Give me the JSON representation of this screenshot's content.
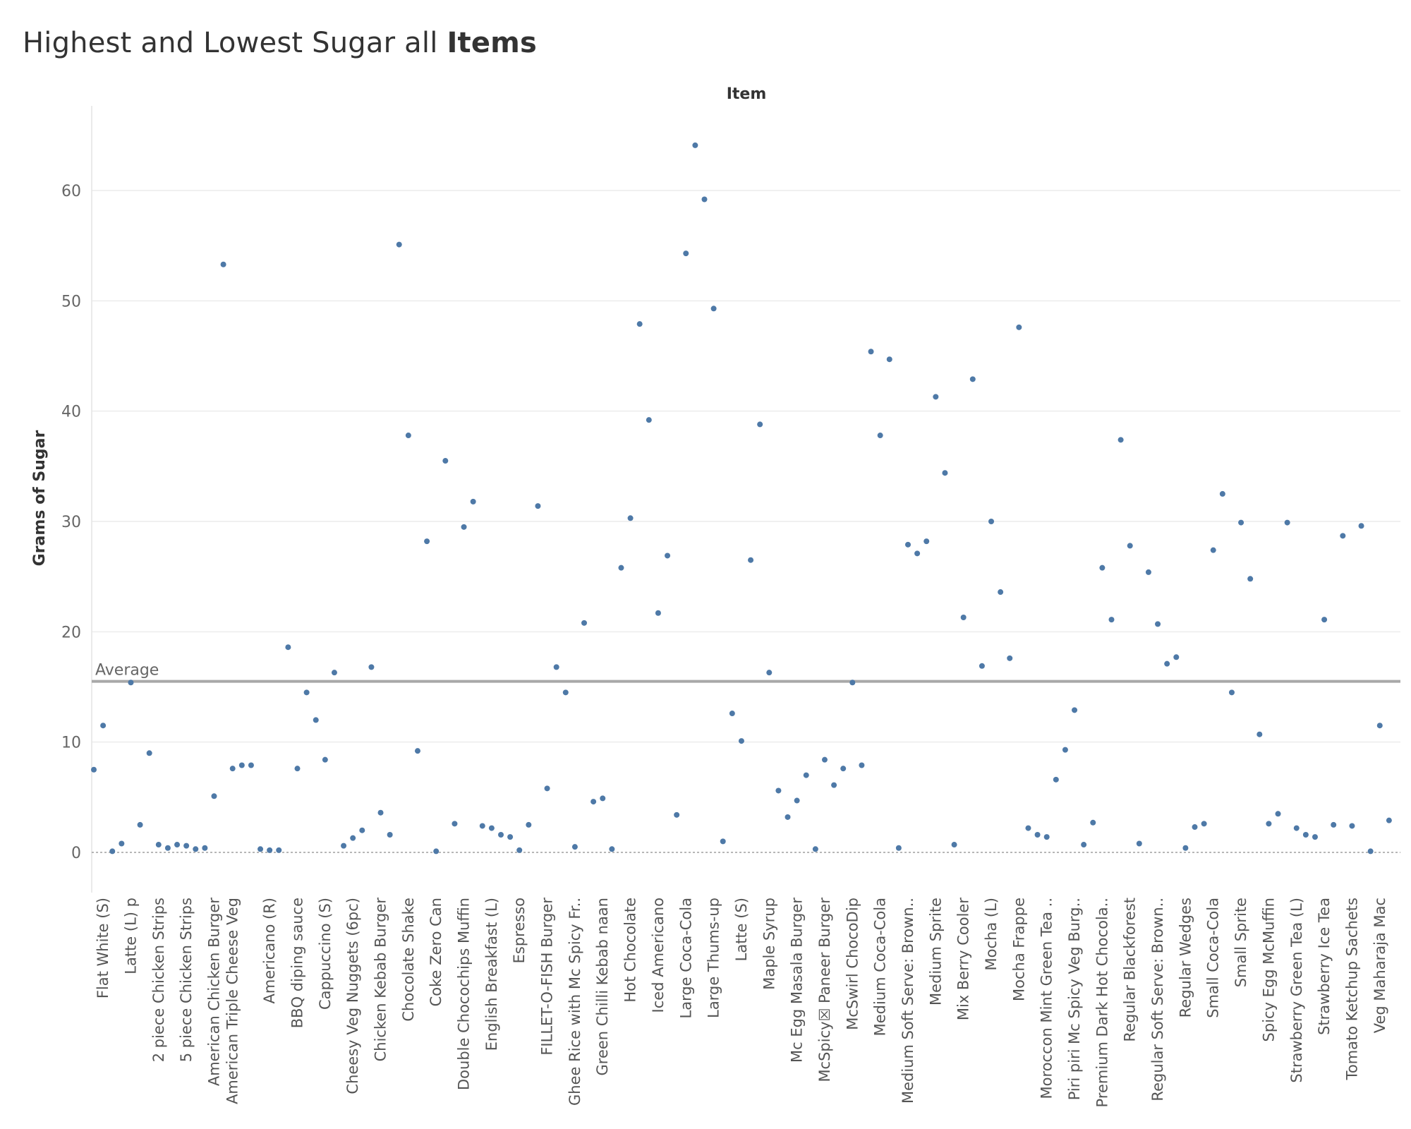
{
  "title_main": "Highest and Lowest Sugar all ",
  "title_bold": "Items",
  "chart_data": {
    "type": "scatter",
    "title": "Highest and Lowest Sugar all Items",
    "xlabel": "Item",
    "ylabel": "Grams of Sugar",
    "ylim": [
      -3.5,
      68.5
    ],
    "yticks": [
      0,
      10,
      20,
      30,
      40,
      50,
      60
    ],
    "grid": true,
    "average": {
      "label": "Average",
      "value": 15.5
    },
    "point_color": "#4e79a7",
    "x_tick_labels": [
      "Flat White (S)",
      "Latte (L) p",
      "2 piece Chicken Strips",
      "5 piece Chicken Strips",
      "American Chicken Burger",
      "American Triple Cheese Veg",
      "Americano (R)",
      "BBQ diping sauce",
      "Cappuccino (S)",
      "Cheesy Veg Nuggets (6pc)",
      "Chicken Kebab Burger",
      "Chocolate Shake",
      "Coke Zero Can",
      "Double Chocochips Muffin",
      "English Breakfast (L)",
      "Espresso",
      "FILLET-O-FISH Burger",
      "Ghee Rice with Mc Spicy Fr..",
      "Green Chilli Kebab naan",
      "Hot Chocolate",
      "Iced Americano",
      "Large Coca-Cola",
      "Large Thums-up",
      "Latte (S)",
      "Maple Syrup",
      "Mc Egg Masala Burger",
      "McSpicy☒ Paneer Burger",
      "McSwirl ChocoDip",
      "Medium Coca-Cola",
      "Medium Soft Serve: Brown..",
      "Medium Sprite",
      "Mix Berry Cooler",
      "Mocha (L)",
      "Mocha Frappe",
      "Moroccon Mint Green Tea ..",
      "Piri piri Mc Spicy Veg Burg..",
      "Premium Dark Hot Chocola..",
      "Regular Blackforest",
      "Regular Soft Serve: Brown..",
      "Regular Wedges",
      "Small Coca-Cola",
      "Small Sprite",
      "Spicy Egg McMuffin",
      "Strawberry Green Tea (L)",
      "Strawberry Ice Tea",
      "Tomato Ketchup Sachets",
      "Veg Maharaja Mac"
    ],
    "x_tick_positions": [
      1,
      4,
      7,
      10,
      13,
      15,
      19,
      22,
      25,
      28,
      31,
      34,
      37,
      40,
      43,
      46,
      49,
      52,
      55,
      58,
      61,
      64,
      67,
      70,
      73,
      76,
      79,
      82,
      85,
      88,
      91,
      94,
      97,
      100,
      103,
      106,
      109,
      112,
      115,
      118,
      121,
      124,
      127,
      130,
      133,
      136,
      139
    ],
    "x_range": [
      0,
      141
    ],
    "points": [
      {
        "x": 0,
        "y": 7.5
      },
      {
        "x": 1,
        "y": 11.5
      },
      {
        "x": 2,
        "y": 0.1
      },
      {
        "x": 3,
        "y": 0.8
      },
      {
        "x": 4,
        "y": 15.4
      },
      {
        "x": 5,
        "y": 2.5
      },
      {
        "x": 6,
        "y": 9.0
      },
      {
        "x": 7,
        "y": 0.7
      },
      {
        "x": 8,
        "y": 0.4
      },
      {
        "x": 9,
        "y": 0.7
      },
      {
        "x": 10,
        "y": 0.6
      },
      {
        "x": 11,
        "y": 0.3
      },
      {
        "x": 12,
        "y": 0.4
      },
      {
        "x": 13,
        "y": 5.1
      },
      {
        "x": 14,
        "y": 53.3
      },
      {
        "x": 15,
        "y": 7.6
      },
      {
        "x": 16,
        "y": 7.9
      },
      {
        "x": 17,
        "y": 7.9
      },
      {
        "x": 18,
        "y": 0.3
      },
      {
        "x": 19,
        "y": 0.2
      },
      {
        "x": 20,
        "y": 0.2
      },
      {
        "x": 21,
        "y": 18.6
      },
      {
        "x": 22,
        "y": 7.6
      },
      {
        "x": 23,
        "y": 14.5
      },
      {
        "x": 24,
        "y": 12.0
      },
      {
        "x": 25,
        "y": 8.4
      },
      {
        "x": 26,
        "y": 16.3
      },
      {
        "x": 27,
        "y": 0.6
      },
      {
        "x": 28,
        "y": 1.3
      },
      {
        "x": 29,
        "y": 2.0
      },
      {
        "x": 30,
        "y": 16.8
      },
      {
        "x": 31,
        "y": 3.6
      },
      {
        "x": 32,
        "y": 1.6
      },
      {
        "x": 33,
        "y": 55.1
      },
      {
        "x": 34,
        "y": 37.8
      },
      {
        "x": 35,
        "y": 9.2
      },
      {
        "x": 36,
        "y": 28.2
      },
      {
        "x": 37,
        "y": 0.1
      },
      {
        "x": 38,
        "y": 35.5
      },
      {
        "x": 39,
        "y": 2.6
      },
      {
        "x": 40,
        "y": 29.5
      },
      {
        "x": 41,
        "y": 31.8
      },
      {
        "x": 42,
        "y": 2.4
      },
      {
        "x": 43,
        "y": 2.2
      },
      {
        "x": 44,
        "y": 1.6
      },
      {
        "x": 45,
        "y": 1.4
      },
      {
        "x": 46,
        "y": 0.2
      },
      {
        "x": 47,
        "y": 2.5
      },
      {
        "x": 48,
        "y": 31.4
      },
      {
        "x": 49,
        "y": 5.8
      },
      {
        "x": 50,
        "y": 16.8
      },
      {
        "x": 51,
        "y": 14.5
      },
      {
        "x": 52,
        "y": 0.5
      },
      {
        "x": 53,
        "y": 20.8
      },
      {
        "x": 54,
        "y": 4.6
      },
      {
        "x": 55,
        "y": 4.9
      },
      {
        "x": 56,
        "y": 0.3
      },
      {
        "x": 57,
        "y": 25.8
      },
      {
        "x": 58,
        "y": 30.3
      },
      {
        "x": 59,
        "y": 47.9
      },
      {
        "x": 60,
        "y": 39.2
      },
      {
        "x": 61,
        "y": 21.7
      },
      {
        "x": 62,
        "y": 26.9
      },
      {
        "x": 63,
        "y": 3.4
      },
      {
        "x": 64,
        "y": 54.3
      },
      {
        "x": 65,
        "y": 64.1
      },
      {
        "x": 66,
        "y": 59.2
      },
      {
        "x": 67,
        "y": 49.3
      },
      {
        "x": 68,
        "y": 1.0
      },
      {
        "x": 69,
        "y": 12.6
      },
      {
        "x": 70,
        "y": 10.1
      },
      {
        "x": 71,
        "y": 26.5
      },
      {
        "x": 72,
        "y": 38.8
      },
      {
        "x": 73,
        "y": 16.3
      },
      {
        "x": 74,
        "y": 5.6
      },
      {
        "x": 75,
        "y": 3.2
      },
      {
        "x": 76,
        "y": 4.7
      },
      {
        "x": 77,
        "y": 7.0
      },
      {
        "x": 78,
        "y": 0.3
      },
      {
        "x": 79,
        "y": 8.4
      },
      {
        "x": 80,
        "y": 6.1
      },
      {
        "x": 81,
        "y": 7.6
      },
      {
        "x": 82,
        "y": 15.4
      },
      {
        "x": 83,
        "y": 7.9
      },
      {
        "x": 84,
        "y": 45.4
      },
      {
        "x": 85,
        "y": 37.8
      },
      {
        "x": 86,
        "y": 44.7
      },
      {
        "x": 87,
        "y": 0.4
      },
      {
        "x": 88,
        "y": 27.9
      },
      {
        "x": 89,
        "y": 27.1
      },
      {
        "x": 90,
        "y": 28.2
      },
      {
        "x": 91,
        "y": 41.3
      },
      {
        "x": 92,
        "y": 34.4
      },
      {
        "x": 93,
        "y": 0.7
      },
      {
        "x": 94,
        "y": 21.3
      },
      {
        "x": 95,
        "y": 42.9
      },
      {
        "x": 96,
        "y": 16.9
      },
      {
        "x": 97,
        "y": 30.0
      },
      {
        "x": 98,
        "y": 23.6
      },
      {
        "x": 99,
        "y": 17.6
      },
      {
        "x": 100,
        "y": 47.6
      },
      {
        "x": 101,
        "y": 2.2
      },
      {
        "x": 102,
        "y": 1.6
      },
      {
        "x": 103,
        "y": 1.4
      },
      {
        "x": 104,
        "y": 6.6
      },
      {
        "x": 105,
        "y": 9.3
      },
      {
        "x": 106,
        "y": 12.9
      },
      {
        "x": 107,
        "y": 0.7
      },
      {
        "x": 108,
        "y": 2.7
      },
      {
        "x": 109,
        "y": 25.8
      },
      {
        "x": 110,
        "y": 21.1
      },
      {
        "x": 111,
        "y": 37.4
      },
      {
        "x": 112,
        "y": 27.8
      },
      {
        "x": 113,
        "y": 0.8
      },
      {
        "x": 114,
        "y": 25.4
      },
      {
        "x": 115,
        "y": 20.7
      },
      {
        "x": 116,
        "y": 17.1
      },
      {
        "x": 117,
        "y": 17.7
      },
      {
        "x": 118,
        "y": 0.4
      },
      {
        "x": 119,
        "y": 2.3
      },
      {
        "x": 120,
        "y": 2.6
      },
      {
        "x": 121,
        "y": 27.4
      },
      {
        "x": 122,
        "y": 32.5
      },
      {
        "x": 123,
        "y": 14.5
      },
      {
        "x": 124,
        "y": 29.9
      },
      {
        "x": 125,
        "y": 24.8
      },
      {
        "x": 126,
        "y": 10.7
      },
      {
        "x": 127,
        "y": 2.6
      },
      {
        "x": 128,
        "y": 3.5
      },
      {
        "x": 129,
        "y": 29.9
      },
      {
        "x": 130,
        "y": 2.2
      },
      {
        "x": 131,
        "y": 1.6
      },
      {
        "x": 132,
        "y": 1.4
      },
      {
        "x": 133,
        "y": 21.1
      },
      {
        "x": 134,
        "y": 2.5
      },
      {
        "x": 135,
        "y": 28.7
      },
      {
        "x": 136,
        "y": 2.4
      },
      {
        "x": 137,
        "y": 29.6
      },
      {
        "x": 138,
        "y": 0.1
      },
      {
        "x": 139,
        "y": 11.5
      },
      {
        "x": 140,
        "y": 2.9
      }
    ]
  }
}
